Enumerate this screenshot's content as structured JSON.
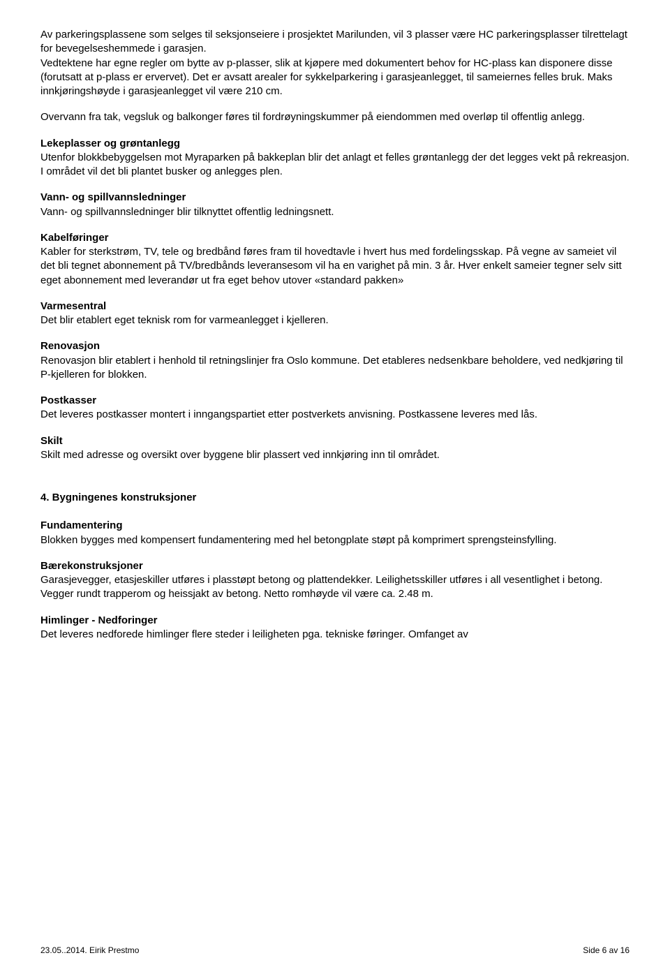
{
  "intro_para1": "Av parkeringsplassene som selges til seksjonseiere i prosjektet Marilunden, vil 3 plasser være HC parkeringsplasser tilrettelagt for bevegelseshemmede i garasjen.",
  "intro_para2": "Vedtektene har egne regler om bytte av p-plasser, slik at kjøpere med dokumentert behov for HC-plass kan disponere disse (forutsatt at p-plass er ervervet). Det er avsatt arealer for sykkelparkering i garasjeanlegget, til sameiernes felles bruk. Maks innkjøringshøyde i garasjeanlegget vil være 210 cm.",
  "overvann": "Overvann fra tak, vegsluk og balkonger føres til fordrøyningskummer på eiendommen med overløp til offentlig anlegg.",
  "sections": {
    "lekeplasser": {
      "title": "Lekeplasser og grøntanlegg",
      "body": "Utenfor blokkbebyggelsen mot Myraparken på bakkeplan blir det anlagt et felles grøntanlegg der det legges vekt på rekreasjon. I området vil det bli plantet busker og anlegges plen."
    },
    "vann": {
      "title": "Vann- og spillvannsledninger",
      "body": "Vann- og spillvannsledninger blir tilknyttet offentlig ledningsnett."
    },
    "kabel": {
      "title": "Kabelføringer",
      "body": "Kabler for sterkstrøm, TV, tele og bredbånd føres fram til hovedtavle i hvert hus med fordelingsskap. På vegne av sameiet vil det bli tegnet abonnement på TV/bredbånds leveransesom vil ha en varighet på min. 3 år. Hver enkelt sameier tegner selv sitt eget abonnement med leverandør ut fra eget behov utover «standard pakken»"
    },
    "varmesentral": {
      "title": "Varmesentral",
      "body": "Det blir etablert eget teknisk rom for varmeanlegget i kjelleren."
    },
    "renovasjon": {
      "title": "Renovasjon",
      "body": "Renovasjon blir etablert i henhold til retningslinjer fra Oslo kommune. Det etableres nedsenkbare beholdere, ved nedkjøring til P-kjelleren for blokken."
    },
    "postkasser": {
      "title": "Postkasser",
      "body": "Det leveres postkasser montert i inngangspartiet etter postverkets anvisning. Postkassene leveres med lås."
    },
    "skilt": {
      "title": "Skilt",
      "body": "Skilt med adresse og oversikt over byggene blir plassert ved innkjøring inn til området."
    }
  },
  "chapter4": {
    "title": "4. Bygningenes konstruksjoner",
    "fundamentering": {
      "title": "Fundamentering",
      "body": "Blokken bygges med kompensert fundamentering med hel betongplate støpt på komprimert sprengsteinsfylling."
    },
    "baerekonstruksjoner": {
      "title": "Bærekonstruksjoner",
      "line1": "Garasjevegger, etasjeskiller utføres i plasstøpt betong og plattendekker. Leilighetsskiller utføres i all vesentlighet i betong.",
      "line2": "Vegger rundt trapperom og heissjakt av betong. Netto romhøyde vil være ca. 2.48 m."
    },
    "himlinger": {
      "title": "Himlinger - Nedforinger",
      "body": "Det leveres nedforede himlinger flere steder i leiligheten pga. tekniske føringer. Omfanget av"
    }
  },
  "footer": {
    "left": "23.05..2014. Eirik Prestmo",
    "right": "Side 6 av 16"
  }
}
